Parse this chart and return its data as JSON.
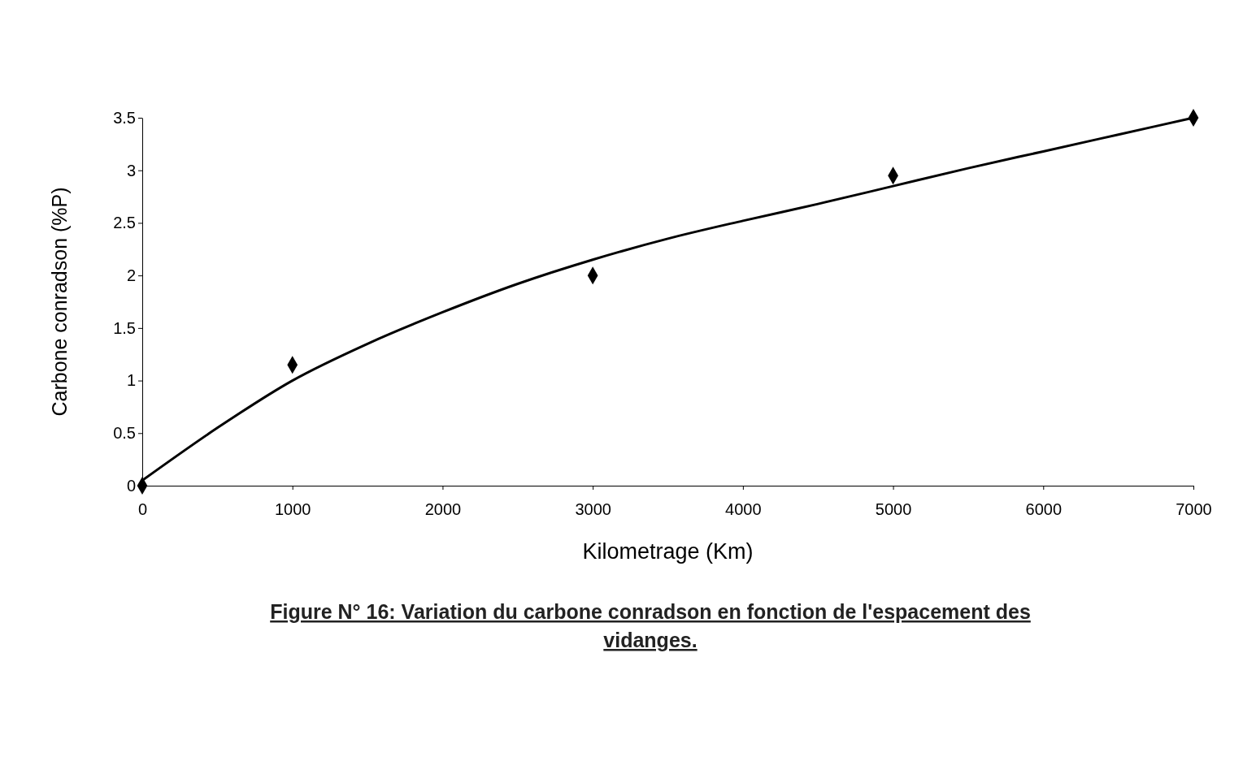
{
  "chart_data": {
    "type": "scatter",
    "title": "Figure N° 16: Variation du carbone conradson en fonction de l'espacement des vidanges.",
    "xlabel": "Kilometrage (Km)",
    "ylabel": "Carbone conradson (%P)",
    "xlim": [
      0,
      7000
    ],
    "ylim": [
      0,
      3.5
    ],
    "xticks": [
      0,
      1000,
      2000,
      3000,
      4000,
      5000,
      6000,
      7000
    ],
    "yticks": [
      0,
      0.5,
      1,
      1.5,
      2,
      2.5,
      3,
      3.5
    ],
    "grid": false,
    "series": [
      {
        "color": "#000000",
        "marker": "diamond",
        "x": [
          0,
          1000,
          3000,
          5000,
          7000
        ],
        "values": [
          0,
          1.15,
          2,
          2.95,
          3.5
        ]
      },
      {
        "type": "line",
        "color": "#000000",
        "marker": "none",
        "line_style": "solid",
        "x": [
          0,
          500,
          1000,
          1500,
          2000,
          2500,
          3000,
          3500,
          4000,
          4500,
          5000,
          5500,
          6000,
          6500,
          7000
        ],
        "values": [
          0.05,
          0.55,
          1,
          1.35,
          1.65,
          1.92,
          2.15,
          2.35,
          2.52,
          2.68,
          2.85,
          3.02,
          3.18,
          3.34,
          3.5
        ]
      }
    ]
  }
}
